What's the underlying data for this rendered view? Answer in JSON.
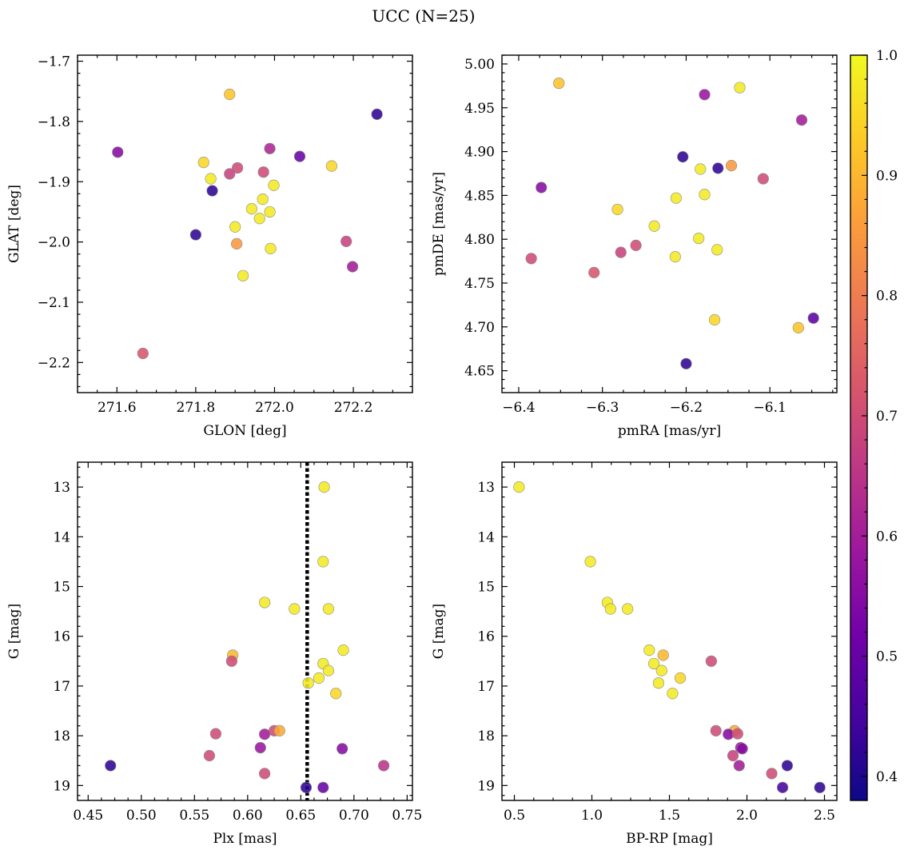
{
  "title": "UCC (N=25)",
  "colorbar": {
    "colormap": "plasma",
    "range": [
      0.38,
      1.0
    ],
    "tick_values": [
      0.4,
      0.5,
      0.6,
      0.7,
      0.8,
      0.9,
      1.0
    ],
    "tick_labels": [
      "0.4",
      "0.5",
      "0.6",
      "0.7",
      "0.8",
      "0.9",
      "1.0"
    ],
    "stops": [
      "#0d0887",
      "#46039f",
      "#7201a8",
      "#9c179e",
      "#bd3786",
      "#d8576b",
      "#ed7953",
      "#fb9f3a",
      "#fdca26",
      "#f0f921"
    ]
  },
  "chart_data": [
    {
      "type": "scatter",
      "xlabel": "GLON [deg]",
      "ylabel": "GLAT [deg]",
      "xlim": [
        271.5,
        272.35
      ],
      "ylim": [
        -2.25,
        -1.69
      ],
      "y_inverted": false,
      "xticks": [
        271.6,
        271.8,
        272.0,
        272.2
      ],
      "xtick_labels": [
        "271.6",
        "271.8",
        "272.0",
        "272.2"
      ],
      "yticks": [
        -2.2,
        -2.1,
        -2.0,
        -1.9,
        -1.8,
        -1.7
      ],
      "ytick_labels": [
        "−2.2",
        "−2.1",
        "−2.0",
        "−1.9",
        "−1.8",
        "−1.7"
      ],
      "points": [
        {
          "x": 271.886,
          "y": -1.755,
          "c": 0.92
        },
        {
          "x": 272.26,
          "y": -1.788,
          "c": 0.42
        },
        {
          "x": 271.602,
          "y": -1.851,
          "c": 0.55
        },
        {
          "x": 271.988,
          "y": -1.845,
          "c": 0.62
        },
        {
          "x": 272.064,
          "y": -1.858,
          "c": 0.5
        },
        {
          "x": 271.82,
          "y": -1.868,
          "c": 0.95
        },
        {
          "x": 272.145,
          "y": -1.874,
          "c": 0.95
        },
        {
          "x": 271.906,
          "y": -1.877,
          "c": 0.7
        },
        {
          "x": 271.886,
          "y": -1.887,
          "c": 0.68
        },
        {
          "x": 271.972,
          "y": -1.884,
          "c": 0.7
        },
        {
          "x": 271.838,
          "y": -1.895,
          "c": 0.98
        },
        {
          "x": 271.998,
          "y": -1.906,
          "c": 0.98
        },
        {
          "x": 271.842,
          "y": -1.915,
          "c": 0.42
        },
        {
          "x": 271.97,
          "y": -1.929,
          "c": 0.98
        },
        {
          "x": 271.942,
          "y": -1.945,
          "c": 0.98
        },
        {
          "x": 271.988,
          "y": -1.95,
          "c": 0.98
        },
        {
          "x": 271.962,
          "y": -1.961,
          "c": 0.98
        },
        {
          "x": 271.9,
          "y": -1.975,
          "c": 0.98
        },
        {
          "x": 271.8,
          "y": -1.988,
          "c": 0.42
        },
        {
          "x": 271.904,
          "y": -2.003,
          "c": 0.85
        },
        {
          "x": 272.182,
          "y": -1.999,
          "c": 0.68
        },
        {
          "x": 271.99,
          "y": -2.011,
          "c": 0.98
        },
        {
          "x": 272.198,
          "y": -2.041,
          "c": 0.6
        },
        {
          "x": 271.92,
          "y": -2.056,
          "c": 0.98
        },
        {
          "x": 271.666,
          "y": -2.185,
          "c": 0.72
        }
      ]
    },
    {
      "type": "scatter",
      "xlabel": "pmRA [mas/yr]",
      "ylabel": "pmDE [mas/yr]",
      "xlim": [
        -6.42,
        -6.02
      ],
      "ylim": [
        4.625,
        5.01
      ],
      "y_inverted": false,
      "xticks": [
        -6.4,
        -6.3,
        -6.2,
        -6.1
      ],
      "xtick_labels": [
        "−6.4",
        "−6.3",
        "−6.2",
        "−6.1"
      ],
      "yticks": [
        4.65,
        4.7,
        4.75,
        4.8,
        4.85,
        4.9,
        4.95,
        5.0
      ],
      "ytick_labels": [
        "4.65",
        "4.70",
        "4.75",
        "4.80",
        "4.85",
        "4.90",
        "4.95",
        "5.00"
      ],
      "points": [
        {
          "x": -6.352,
          "y": 4.978,
          "c": 0.92
        },
        {
          "x": -6.136,
          "y": 4.973,
          "c": 0.98
        },
        {
          "x": -6.178,
          "y": 4.965,
          "c": 0.58
        },
        {
          "x": -6.062,
          "y": 4.936,
          "c": 0.6
        },
        {
          "x": -6.204,
          "y": 4.894,
          "c": 0.42
        },
        {
          "x": -6.146,
          "y": 4.884,
          "c": 0.85
        },
        {
          "x": -6.162,
          "y": 4.881,
          "c": 0.42
        },
        {
          "x": -6.183,
          "y": 4.88,
          "c": 0.98
        },
        {
          "x": -6.108,
          "y": 4.869,
          "c": 0.7
        },
        {
          "x": -6.373,
          "y": 4.859,
          "c": 0.55
        },
        {
          "x": -6.178,
          "y": 4.851,
          "c": 0.98
        },
        {
          "x": -6.212,
          "y": 4.847,
          "c": 0.98
        },
        {
          "x": -6.282,
          "y": 4.834,
          "c": 0.95
        },
        {
          "x": -6.238,
          "y": 4.815,
          "c": 0.98
        },
        {
          "x": -6.185,
          "y": 4.801,
          "c": 0.98
        },
        {
          "x": -6.26,
          "y": 4.793,
          "c": 0.7
        },
        {
          "x": -6.163,
          "y": 4.788,
          "c": 0.98
        },
        {
          "x": -6.278,
          "y": 4.785,
          "c": 0.68
        },
        {
          "x": -6.213,
          "y": 4.78,
          "c": 0.98
        },
        {
          "x": -6.385,
          "y": 4.778,
          "c": 0.7
        },
        {
          "x": -6.31,
          "y": 4.762,
          "c": 0.72
        },
        {
          "x": -6.166,
          "y": 4.708,
          "c": 0.95
        },
        {
          "x": -6.048,
          "y": 4.71,
          "c": 0.48
        },
        {
          "x": -6.066,
          "y": 4.699,
          "c": 0.92
        },
        {
          "x": -6.2,
          "y": 4.658,
          "c": 0.42
        }
      ]
    },
    {
      "type": "scatter",
      "xlabel": "Plx [mas]",
      "ylabel": "G [mag]",
      "xlim": [
        0.44,
        0.755
      ],
      "ylim": [
        19.3,
        12.5
      ],
      "y_inverted": true,
      "xticks": [
        0.45,
        0.5,
        0.55,
        0.6,
        0.65,
        0.7,
        0.75
      ],
      "xtick_labels": [
        "0.45",
        "0.50",
        "0.55",
        "0.60",
        "0.65",
        "0.70",
        "0.75"
      ],
      "yticks": [
        13,
        14,
        15,
        16,
        17,
        18,
        19
      ],
      "ytick_labels": [
        "13",
        "14",
        "15",
        "16",
        "17",
        "18",
        "19"
      ],
      "vline": {
        "x": 0.656,
        "style": "dotted"
      },
      "points": [
        {
          "x": 0.672,
          "y": 13.0,
          "c": 0.98
        },
        {
          "x": 0.671,
          "y": 14.5,
          "c": 0.98
        },
        {
          "x": 0.616,
          "y": 15.32,
          "c": 0.98
        },
        {
          "x": 0.644,
          "y": 15.45,
          "c": 0.98
        },
        {
          "x": 0.676,
          "y": 15.45,
          "c": 0.98
        },
        {
          "x": 0.69,
          "y": 16.28,
          "c": 0.98
        },
        {
          "x": 0.586,
          "y": 16.38,
          "c": 0.9
        },
        {
          "x": 0.585,
          "y": 16.5,
          "c": 0.7
        },
        {
          "x": 0.671,
          "y": 16.55,
          "c": 0.98
        },
        {
          "x": 0.676,
          "y": 16.69,
          "c": 0.98
        },
        {
          "x": 0.667,
          "y": 16.84,
          "c": 0.98
        },
        {
          "x": 0.657,
          "y": 16.94,
          "c": 0.98
        },
        {
          "x": 0.683,
          "y": 17.15,
          "c": 0.95
        },
        {
          "x": 0.625,
          "y": 17.9,
          "c": 0.7
        },
        {
          "x": 0.63,
          "y": 17.9,
          "c": 0.88
        },
        {
          "x": 0.57,
          "y": 17.96,
          "c": 0.7
        },
        {
          "x": 0.616,
          "y": 17.97,
          "c": 0.6
        },
        {
          "x": 0.612,
          "y": 18.24,
          "c": 0.58
        },
        {
          "x": 0.689,
          "y": 18.26,
          "c": 0.55
        },
        {
          "x": 0.564,
          "y": 18.4,
          "c": 0.7
        },
        {
          "x": 0.471,
          "y": 18.6,
          "c": 0.42
        },
        {
          "x": 0.728,
          "y": 18.6,
          "c": 0.65
        },
        {
          "x": 0.616,
          "y": 18.76,
          "c": 0.7
        },
        {
          "x": 0.655,
          "y": 19.04,
          "c": 0.42
        },
        {
          "x": 0.671,
          "y": 19.04,
          "c": 0.5
        }
      ]
    },
    {
      "type": "scatter",
      "xlabel": "BP-RP [mag]",
      "ylabel": "G [mag]",
      "xlim": [
        0.42,
        2.58
      ],
      "ylim": [
        19.3,
        12.5
      ],
      "y_inverted": true,
      "xticks": [
        0.5,
        1.0,
        1.5,
        2.0,
        2.5
      ],
      "xtick_labels": [
        "0.5",
        "1.0",
        "1.5",
        "2.0",
        "2.5"
      ],
      "yticks": [
        13,
        14,
        15,
        16,
        17,
        18,
        19
      ],
      "ytick_labels": [
        "13",
        "14",
        "15",
        "16",
        "17",
        "18",
        "19"
      ],
      "points": [
        {
          "x": 0.53,
          "y": 13.0,
          "c": 0.98
        },
        {
          "x": 0.99,
          "y": 14.5,
          "c": 0.98
        },
        {
          "x": 1.1,
          "y": 15.32,
          "c": 0.98
        },
        {
          "x": 1.12,
          "y": 15.45,
          "c": 0.98
        },
        {
          "x": 1.23,
          "y": 15.45,
          "c": 0.98
        },
        {
          "x": 1.37,
          "y": 16.28,
          "c": 0.98
        },
        {
          "x": 1.46,
          "y": 16.38,
          "c": 0.9
        },
        {
          "x": 1.4,
          "y": 16.55,
          "c": 0.98
        },
        {
          "x": 1.77,
          "y": 16.5,
          "c": 0.7
        },
        {
          "x": 1.45,
          "y": 16.69,
          "c": 0.98
        },
        {
          "x": 1.57,
          "y": 16.84,
          "c": 0.95
        },
        {
          "x": 1.43,
          "y": 16.94,
          "c": 0.98
        },
        {
          "x": 1.52,
          "y": 17.15,
          "c": 0.98
        },
        {
          "x": 1.8,
          "y": 17.9,
          "c": 0.7
        },
        {
          "x": 1.92,
          "y": 17.9,
          "c": 0.88
        },
        {
          "x": 1.88,
          "y": 17.97,
          "c": 0.55
        },
        {
          "x": 1.94,
          "y": 17.96,
          "c": 0.7
        },
        {
          "x": 1.96,
          "y": 18.24,
          "c": 0.58
        },
        {
          "x": 1.97,
          "y": 18.26,
          "c": 0.55
        },
        {
          "x": 1.91,
          "y": 18.4,
          "c": 0.68
        },
        {
          "x": 1.95,
          "y": 18.6,
          "c": 0.6
        },
        {
          "x": 2.26,
          "y": 18.6,
          "c": 0.42
        },
        {
          "x": 2.16,
          "y": 18.76,
          "c": 0.7
        },
        {
          "x": 2.23,
          "y": 19.04,
          "c": 0.45
        },
        {
          "x": 2.47,
          "y": 19.04,
          "c": 0.42
        }
      ]
    }
  ]
}
